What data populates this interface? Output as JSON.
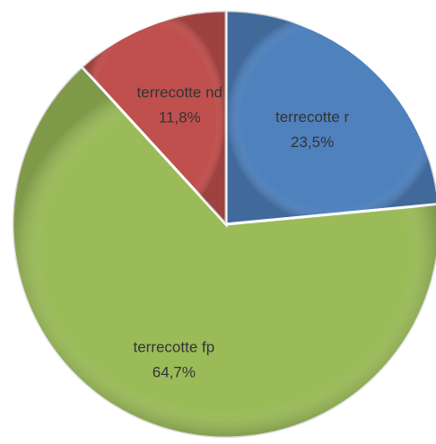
{
  "chart_data": {
    "type": "pie",
    "categories": [
      "terrecotte r",
      "terrecotte fp",
      "terrecotte nd"
    ],
    "values": [
      23.5,
      64.7,
      11.8
    ],
    "value_labels": [
      "23,5%",
      "64,7%",
      "11,8%"
    ],
    "colors": [
      "#4f81bd",
      "#9bbb59",
      "#c0504d"
    ]
  }
}
